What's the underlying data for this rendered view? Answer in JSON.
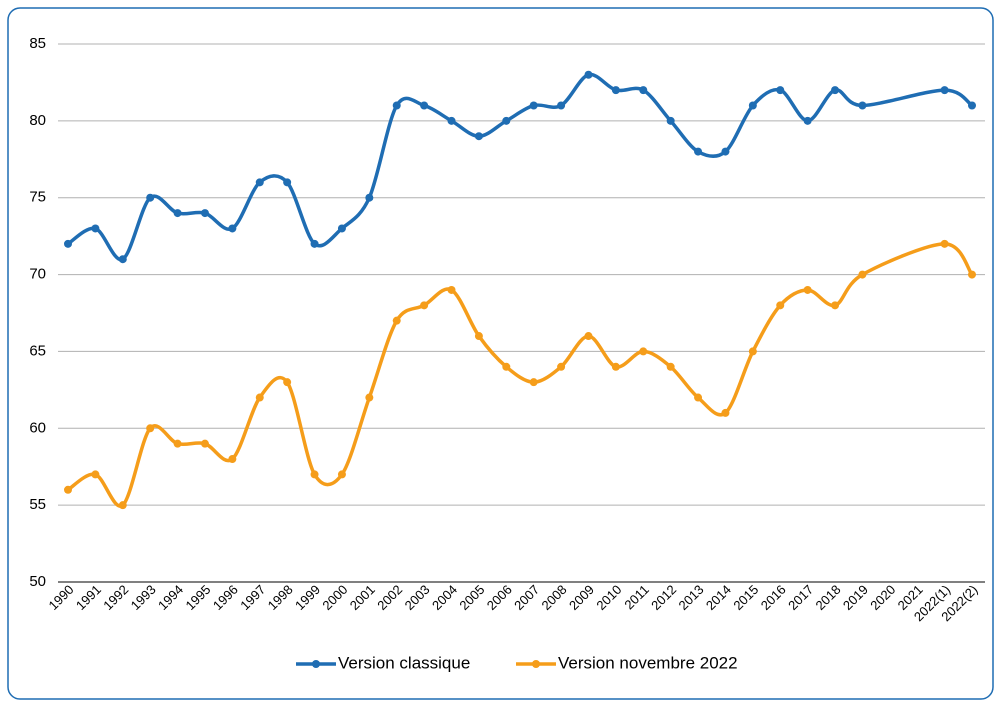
{
  "chart_data": {
    "type": "line",
    "categories": [
      "1990",
      "1991",
      "1992",
      "1993",
      "1994",
      "1995",
      "1996",
      "1997",
      "1998",
      "1999",
      "2000",
      "2001",
      "2002",
      "2003",
      "2004",
      "2005",
      "2006",
      "2007",
      "2008",
      "2009",
      "2010",
      "2011",
      "2012",
      "2013",
      "2014",
      "2015",
      "2016",
      "2017",
      "2018",
      "2019",
      "2020",
      "2021",
      "2022(1)",
      "2022(2)"
    ],
    "series": [
      {
        "name": "Version classique",
        "color": "#1f6db3",
        "values": [
          72,
          73,
          71,
          75,
          74,
          74,
          73,
          76,
          76,
          72,
          73,
          75,
          81,
          81,
          80,
          79,
          80,
          81,
          81,
          83,
          82,
          82,
          80,
          78,
          78,
          81,
          82,
          80,
          82,
          81,
          null,
          null,
          82,
          81
        ]
      },
      {
        "name": "Version novembre 2022",
        "color": "#f59d1a",
        "values": [
          56,
          57,
          55,
          60,
          59,
          59,
          58,
          62,
          63,
          57,
          57,
          62,
          67,
          68,
          69,
          66,
          64,
          63,
          64,
          66,
          64,
          65,
          64,
          62,
          61,
          65,
          68,
          69,
          68,
          70,
          null,
          null,
          72,
          70
        ]
      }
    ],
    "ylim": [
      50,
      85
    ],
    "yticks": [
      50,
      55,
      60,
      65,
      70,
      75,
      80,
      85
    ],
    "grid": true,
    "smooth": true,
    "span_gaps": true,
    "legend": "bottom"
  }
}
